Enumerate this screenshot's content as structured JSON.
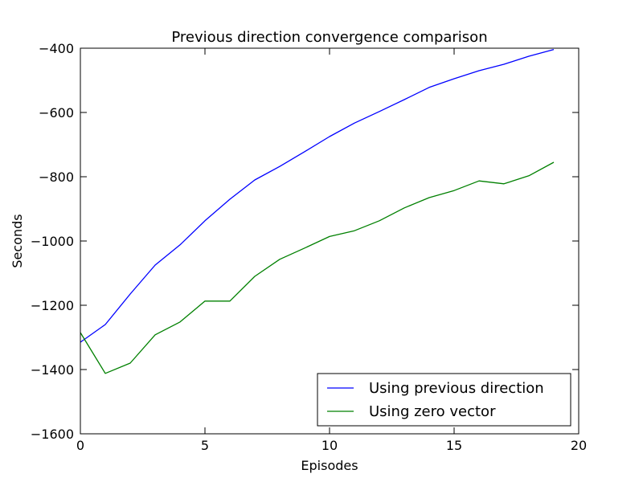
{
  "chart_data": {
    "type": "line",
    "title": "Previous direction convergence comparison",
    "xlabel": "Episodes",
    "ylabel": "Seconds",
    "xlim": [
      0,
      20
    ],
    "ylim": [
      -1600,
      -400
    ],
    "xticks": [
      0,
      5,
      10,
      15,
      20
    ],
    "yticks": [
      -1600,
      -1400,
      -1200,
      -1000,
      -800,
      -600,
      -400
    ],
    "xtick_labels": [
      "0",
      "5",
      "10",
      "15",
      "20"
    ],
    "ytick_labels": [
      "−1600",
      "−1400",
      "−1200",
      "−1000",
      "−800",
      "−600",
      "−400"
    ],
    "grid": false,
    "legend_position": "lower-right",
    "x": [
      0,
      1,
      2,
      3,
      4,
      5,
      6,
      7,
      8,
      9,
      10,
      11,
      12,
      13,
      14,
      15,
      16,
      17,
      18,
      19
    ],
    "series": [
      {
        "name": "Using previous direction",
        "color": "#0000ff",
        "values": [
          -1315,
          -1260,
          -1165,
          -1075,
          -1012,
          -937,
          -870,
          -810,
          -768,
          -722,
          -675,
          -633,
          -597,
          -560,
          -522,
          -495,
          -470,
          -450,
          -425,
          -404
        ]
      },
      {
        "name": "Using zero vector",
        "color": "#008000",
        "values": [
          -1285,
          -1412,
          -1380,
          -1292,
          -1252,
          -1187,
          -1187,
          -1110,
          -1057,
          -1022,
          -986,
          -968,
          -937,
          -897,
          -865,
          -843,
          -813,
          -822,
          -797,
          -755
        ]
      }
    ]
  }
}
